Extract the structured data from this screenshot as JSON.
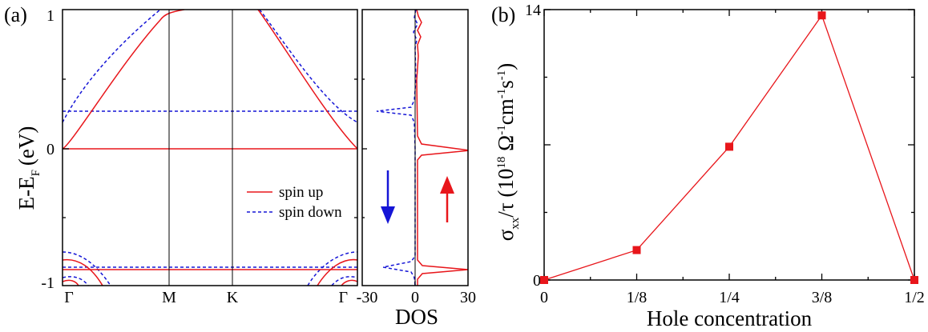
{
  "colors": {
    "spin_up": "#e8161b",
    "spin_down": "#1515d6",
    "axis": "#000000"
  },
  "panel_a": {
    "label": "(a)",
    "ylabel_main": "E-E",
    "ylabel_sub": "F",
    "ylabel_unit": "(eV)",
    "y_ticks": [
      "1",
      "0",
      "-1"
    ],
    "k_labels": [
      "Γ",
      "M",
      "K",
      "Γ"
    ],
    "legend": {
      "spin_up": "spin up",
      "spin_down": "spin down"
    }
  },
  "panel_dos": {
    "xlabel": "DOS",
    "x_ticks": [
      "-30",
      "0",
      "30"
    ]
  },
  "panel_b": {
    "label": "(b)",
    "ylabel_sigma": "σ",
    "ylabel_sub": "xx",
    "ylabel_tau": "/τ (10",
    "ylabel_exp": "18",
    "ylabel_omega": " Ω",
    "ylabel_m1a": "-1",
    "ylabel_cm": "cm",
    "ylabel_m1b": "-1",
    "ylabel_s": "s",
    "ylabel_m1c": "-1",
    "ylabel_close": ")",
    "xlabel": "Hole concentration"
  },
  "chart_data": [
    {
      "type": "line",
      "panel": "band structure",
      "x_labels": [
        "Γ",
        "M",
        "K",
        "Γ"
      ],
      "ylim": [
        -1,
        1
      ],
      "y_ticks": [
        -1,
        0,
        1
      ],
      "series": [
        {
          "name": "spin up",
          "style": "solid",
          "color": "#e8161b"
        },
        {
          "name": "spin down",
          "style": "dashed",
          "color": "#1515d6"
        }
      ],
      "flat_bands_eV": {
        "spin_up": [
          0.0,
          -0.9
        ],
        "spin_down": [
          0.27,
          -0.88
        ]
      },
      "legend_position": "lower-right"
    },
    {
      "type": "line",
      "panel": "DOS",
      "xlabel": "DOS",
      "xlim": [
        -30,
        30
      ],
      "x_ticks": [
        -30,
        0,
        30
      ],
      "ylim": [
        -1,
        1
      ],
      "peaks": {
        "spin_up": [
          {
            "E": -0.02,
            "DOS": 29
          },
          {
            "E": -0.92,
            "DOS": 28
          }
        ],
        "spin_down": [
          {
            "E": 0.27,
            "DOS": -28
          },
          {
            "E": -0.88,
            "DOS": -25
          }
        ]
      },
      "arrows": [
        "spin down (down arrow)",
        "spin up (up arrow)"
      ]
    },
    {
      "type": "line",
      "panel": "conductivity",
      "categories": [
        "0",
        "1/8",
        "1/4",
        "3/8",
        "1/2"
      ],
      "x": [
        0,
        0.125,
        0.25,
        0.375,
        0.5
      ],
      "series": [
        {
          "values": [
            0,
            1.55,
            6.9,
            13.7,
            0
          ],
          "color": "#e8161b",
          "marker": "square"
        }
      ],
      "xlabel": "Hole concentration",
      "ylim": [
        0,
        14
      ],
      "y_ticks": [
        0,
        14
      ]
    }
  ]
}
